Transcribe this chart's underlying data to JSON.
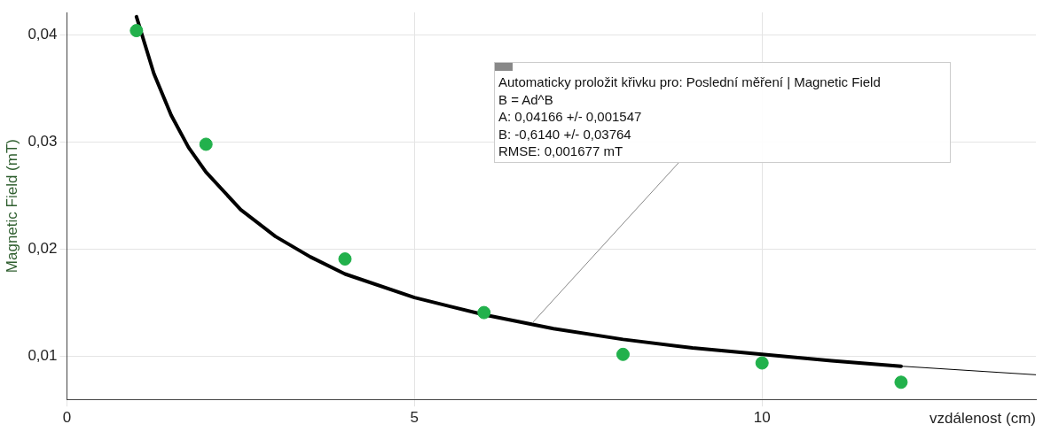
{
  "chart_data": {
    "type": "scatter",
    "xlabel": "vzdálenost (cm)",
    "ylabel": "Magnetic Field (mT)",
    "xlim": [
      0,
      13.94
    ],
    "ylim": [
      0.006,
      0.0421
    ],
    "xticks": [
      0,
      5,
      10
    ],
    "yticks": [
      {
        "value": 0.01,
        "label": "0,01"
      },
      {
        "value": 0.02,
        "label": "0,02"
      },
      {
        "value": 0.03,
        "label": "0,03"
      },
      {
        "value": 0.04,
        "label": "0,04"
      }
    ],
    "grid": true,
    "legend": false,
    "series": [
      {
        "type": "scatter",
        "marker": "circle",
        "color": "#22b14c",
        "x": [
          1,
          2,
          4,
          6,
          8,
          10,
          12
        ],
        "values": [
          0.0404,
          0.0298,
          0.0191,
          0.0141,
          0.0102,
          0.0094,
          0.0076
        ]
      },
      {
        "type": "line",
        "marker": "none",
        "color": "#000000",
        "x": [
          1,
          1.25,
          1.5,
          1.75,
          2,
          2.5,
          3,
          3.5,
          4,
          5,
          6,
          7,
          8,
          9,
          10,
          11,
          12
        ],
        "values": [
          0.0417,
          0.0364,
          0.0325,
          0.0295,
          0.0272,
          0.0237,
          0.0212,
          0.0193,
          0.0177,
          0.0155,
          0.0139,
          0.0126,
          0.0116,
          0.0108,
          0.0102,
          0.0096,
          0.0091
        ]
      },
      {
        "type": "line",
        "marker": "none",
        "color": "#000000",
        "x": [
          12,
          13.94
        ],
        "values": [
          0.0091,
          0.0083
        ]
      }
    ],
    "annotations": [
      "Automaticky proložit křivku pro: Poslední měření | Magnetic Field",
      "B = Ad^B",
      "A: 0,04166 +/- 0,001547",
      "B: -0,6140 +/- 0,03764",
      "RMSE: 0,001677 mT"
    ]
  }
}
